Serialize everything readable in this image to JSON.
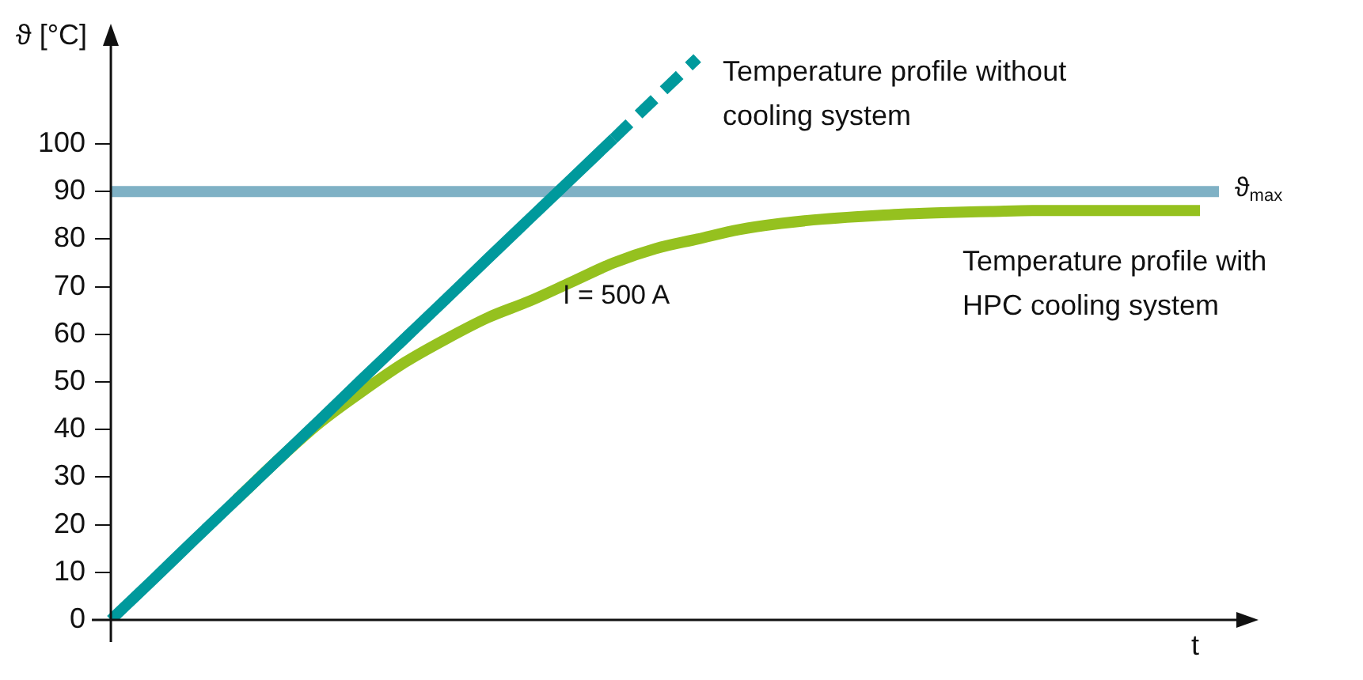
{
  "chart_data": {
    "type": "line",
    "xlabel": "t",
    "ylabel": "ϑ [°C]",
    "categories": [
      null,
      null,
      null,
      null,
      null,
      null,
      null,
      null,
      null,
      null,
      null,
      null,
      null,
      null,
      null,
      null,
      null,
      null,
      null,
      null,
      null,
      null,
      null,
      null,
      null,
      null,
      null
    ],
    "ylim": [
      0,
      122
    ],
    "yticks": [
      0,
      10,
      20,
      30,
      40,
      50,
      60,
      70,
      80,
      90,
      100
    ],
    "series": [
      {
        "color": "#00999c",
        "values": [
          0,
          8.4,
          16.9,
          25.3,
          33.7,
          42.1,
          50.6,
          59,
          67.4,
          75.9,
          84.3,
          92.7,
          101.1,
          null,
          null,
          null,
          null,
          null,
          null,
          null,
          null,
          null,
          null,
          null,
          null,
          null,
          null
        ]
      },
      {
        "name": "Temperature profile without cooling system",
        "color": "#00999c",
        "line_style": "dashed",
        "values": [
          null,
          null,
          null,
          null,
          null,
          null,
          null,
          null,
          null,
          null,
          null,
          null,
          101.1,
          109.6,
          118,
          null,
          null,
          null,
          null,
          null,
          null,
          null,
          null,
          null,
          null,
          null,
          null
        ]
      },
      {
        "name": "Temperature profile with HPC cooling system",
        "color": "#95c11f",
        "values": [
          null,
          null,
          null,
          25.3,
          33.7,
          41.5,
          48,
          54,
          59,
          63.5,
          67,
          71,
          75,
          78,
          80,
          82,
          83.3,
          84.2,
          84.8,
          85.3,
          85.6,
          85.8,
          86,
          86,
          86,
          86,
          86
        ]
      }
    ],
    "ref_lines": [
      {
        "axis": "y",
        "value": 90,
        "label": "ϑ$_{max}$",
        "color": "#7fb1c5"
      }
    ],
    "annotations": [
      "I = 500 A"
    ],
    "grid": false,
    "legend": false,
    "tick_labels": "y",
    "marker": "none",
    "line_style": "solid"
  }
}
